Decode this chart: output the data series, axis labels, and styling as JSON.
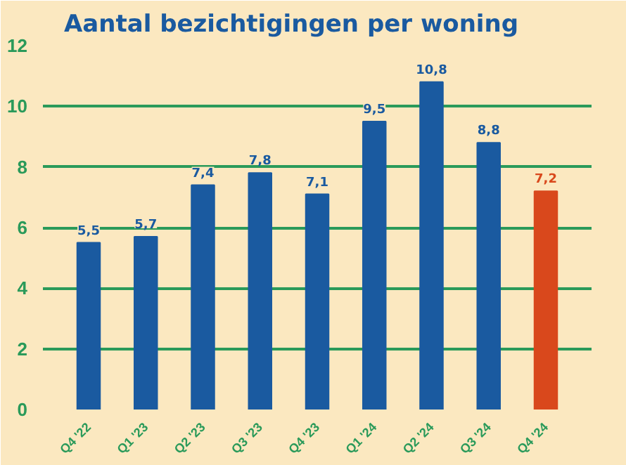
{
  "chart_data": {
    "type": "bar",
    "title": "Aantal bezichtigingen per woning",
    "categories": [
      "Q4 '22",
      "Q1 '23",
      "Q2 '23",
      "Q3 '23",
      "Q4 '23",
      "Q1 '24",
      "Q2 '24",
      "Q3 '24",
      "Q4 '24"
    ],
    "values": [
      5.5,
      5.7,
      7.4,
      7.8,
      7.1,
      9.5,
      10.8,
      8.8,
      7.2
    ],
    "value_labels": [
      "5,5",
      "5,7",
      "7,4",
      "7,8",
      "7,1",
      "9,5",
      "10,8",
      "8,8",
      "7,2"
    ],
    "colors": [
      "#1a5aa0",
      "#1a5aa0",
      "#1a5aa0",
      "#1a5aa0",
      "#1a5aa0",
      "#1a5aa0",
      "#1a5aa0",
      "#1a5aa0",
      "#d9481c"
    ],
    "ylim": [
      0,
      12
    ],
    "yticks": [
      0,
      2,
      4,
      6,
      8,
      10,
      12
    ],
    "grid": "y"
  }
}
